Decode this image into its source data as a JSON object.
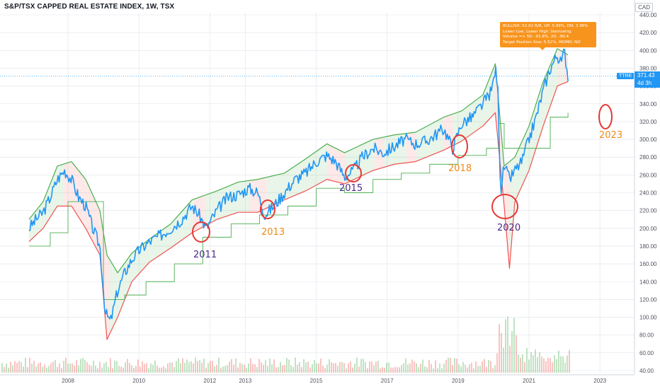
{
  "header": {
    "title": "S&P/TSX CAPPED REAL ESTATE INDEX, 1W, TSX",
    "currency": "CAD"
  },
  "tooltip": {
    "lines": [
      "BULLISH: 52.02 R/R, UP: 5.99%, DN: 3.96%",
      "Lower Low, Lower High ,Narrowing",
      "Volume => 50: -91.8%, 20: -90.4",
      "Target Position Size: 5.52%, MOMO: NO"
    ]
  },
  "price_tag": {
    "symbol": "TTRE",
    "price": "371.43",
    "countdown": "4d 3h"
  },
  "annotations": [
    {
      "label": "2011",
      "color": "purple"
    },
    {
      "label": "2013",
      "color": "orange"
    },
    {
      "label": "2015",
      "color": "purple"
    },
    {
      "label": "2018",
      "color": "orange"
    },
    {
      "label": "2020",
      "color": "purple"
    },
    {
      "label": "2023",
      "color": "orange"
    }
  ],
  "colors": {
    "price": "#2196f3",
    "bull_band": "#4caf50",
    "bear_band": "#ef5350",
    "circle": "#e53935",
    "grid": "#e0e3eb"
  },
  "chart_data": {
    "type": "line",
    "title": "S&P/TSX CAPPED REAL ESTATE INDEX, 1W, TSX",
    "xlabel": "",
    "ylabel": "",
    "x_ticks": [
      "2008",
      "2010",
      "2012",
      "2013",
      "2015",
      "2017",
      "2019",
      "2021",
      "2023"
    ],
    "y_ticks": [
      40,
      60,
      80,
      100,
      120,
      140,
      160,
      180,
      200,
      220,
      240,
      260,
      280,
      300,
      320,
      340,
      360,
      380,
      400,
      420,
      440
    ],
    "ylim": [
      37,
      450
    ],
    "xlim": [
      2006.9,
      2023.8
    ],
    "grid": true,
    "series": [
      {
        "name": "TTRE",
        "style": "line",
        "x": [
          2006.9,
          2007.1,
          2007.3,
          2007.5,
          2007.7,
          2007.9,
          2008.1,
          2008.3,
          2008.5,
          2008.7,
          2008.9,
          2009.05,
          2009.2,
          2009.4,
          2009.6,
          2009.8,
          2010.0,
          2010.3,
          2010.6,
          2010.9,
          2011.2,
          2011.5,
          2011.7,
          2011.9,
          2012.2,
          2012.5,
          2012.8,
          2013.1,
          2013.35,
          2013.55,
          2013.8,
          2014.1,
          2014.4,
          2014.7,
          2015.0,
          2015.3,
          2015.55,
          2015.8,
          2016.05,
          2016.3,
          2016.6,
          2016.9,
          2017.2,
          2017.5,
          2017.8,
          2018.1,
          2018.35,
          2018.6,
          2018.85,
          2019.1,
          2019.4,
          2019.7,
          2019.95,
          2020.05,
          2020.12,
          2020.2,
          2020.3,
          2020.45,
          2020.6,
          2020.8,
          2021.0,
          2021.2,
          2021.4,
          2021.6,
          2021.8,
          2021.9,
          2022.0,
          2022.1
        ],
        "values": [
          200,
          210,
          218,
          235,
          255,
          265,
          255,
          235,
          225,
          200,
          180,
          105,
          95,
          130,
          150,
          165,
          175,
          185,
          192,
          200,
          210,
          225,
          215,
          200,
          220,
          235,
          238,
          245,
          240,
          215,
          225,
          240,
          255,
          262,
          275,
          282,
          275,
          258,
          265,
          280,
          290,
          285,
          292,
          300,
          295,
          298,
          305,
          312,
          290,
          318,
          325,
          340,
          355,
          380,
          360,
          240,
          270,
          255,
          265,
          275,
          300,
          325,
          355,
          380,
          395,
          385,
          400,
          371
        ]
      },
      {
        "name": "Upper band",
        "style": "band",
        "x": [
          2006.9,
          2007.3,
          2007.7,
          2008.1,
          2008.5,
          2008.9,
          2009.1,
          2009.4,
          2009.8,
          2010.3,
          2010.9,
          2011.5,
          2012.2,
          2012.8,
          2013.35,
          2014.1,
          2014.7,
          2015.3,
          2015.8,
          2016.6,
          2017.2,
          2017.8,
          2018.6,
          2019.1,
          2019.7,
          2020.05,
          2020.3,
          2020.6,
          2021.0,
          2021.4,
          2021.8,
          2022.1
        ],
        "values": [
          210,
          230,
          270,
          275,
          255,
          220,
          170,
          150,
          172,
          188,
          205,
          232,
          242,
          252,
          255,
          262,
          278,
          295,
          285,
          300,
          305,
          308,
          325,
          332,
          350,
          385,
          270,
          280,
          315,
          365,
          402,
          395
        ]
      },
      {
        "name": "Lower band",
        "style": "band",
        "x": [
          2006.9,
          2007.3,
          2007.7,
          2008.1,
          2008.5,
          2008.9,
          2009.1,
          2009.4,
          2009.8,
          2010.3,
          2010.9,
          2011.5,
          2012.2,
          2012.8,
          2013.35,
          2014.1,
          2014.7,
          2015.3,
          2015.8,
          2016.6,
          2017.2,
          2017.8,
          2018.6,
          2019.1,
          2019.7,
          2020.05,
          2020.3,
          2020.45,
          2020.6,
          2021.0,
          2021.4,
          2021.8,
          2022.1
        ],
        "values": [
          185,
          200,
          225,
          225,
          200,
          170,
          75,
          100,
          140,
          162,
          178,
          195,
          210,
          218,
          218,
          232,
          242,
          255,
          250,
          265,
          272,
          275,
          288,
          298,
          315,
          330,
          225,
          155,
          230,
          265,
          315,
          360,
          365
        ]
      },
      {
        "name": "Trailing stop",
        "style": "step",
        "x": [
          2006.9,
          2007.5,
          2008.0,
          2008.8,
          2009.0,
          2009.6,
          2010.2,
          2011.0,
          2011.8,
          2012.6,
          2013.4,
          2014.2,
          2015.0,
          2015.8,
          2016.6,
          2017.4,
          2018.2,
          2019.0,
          2019.8,
          2020.15,
          2020.3,
          2021.0,
          2021.6,
          2022.1
        ],
        "values": [
          180,
          195,
          230,
          230,
          120,
          125,
          140,
          160,
          190,
          205,
          215,
          225,
          245,
          240,
          255,
          262,
          272,
          282,
          290,
          318,
          290,
          290,
          325,
          330
        ]
      }
    ],
    "volume": {
      "name": "Volume",
      "note": "volume histogram bars along the bottom of the chart, with a spike during 2020"
    }
  }
}
